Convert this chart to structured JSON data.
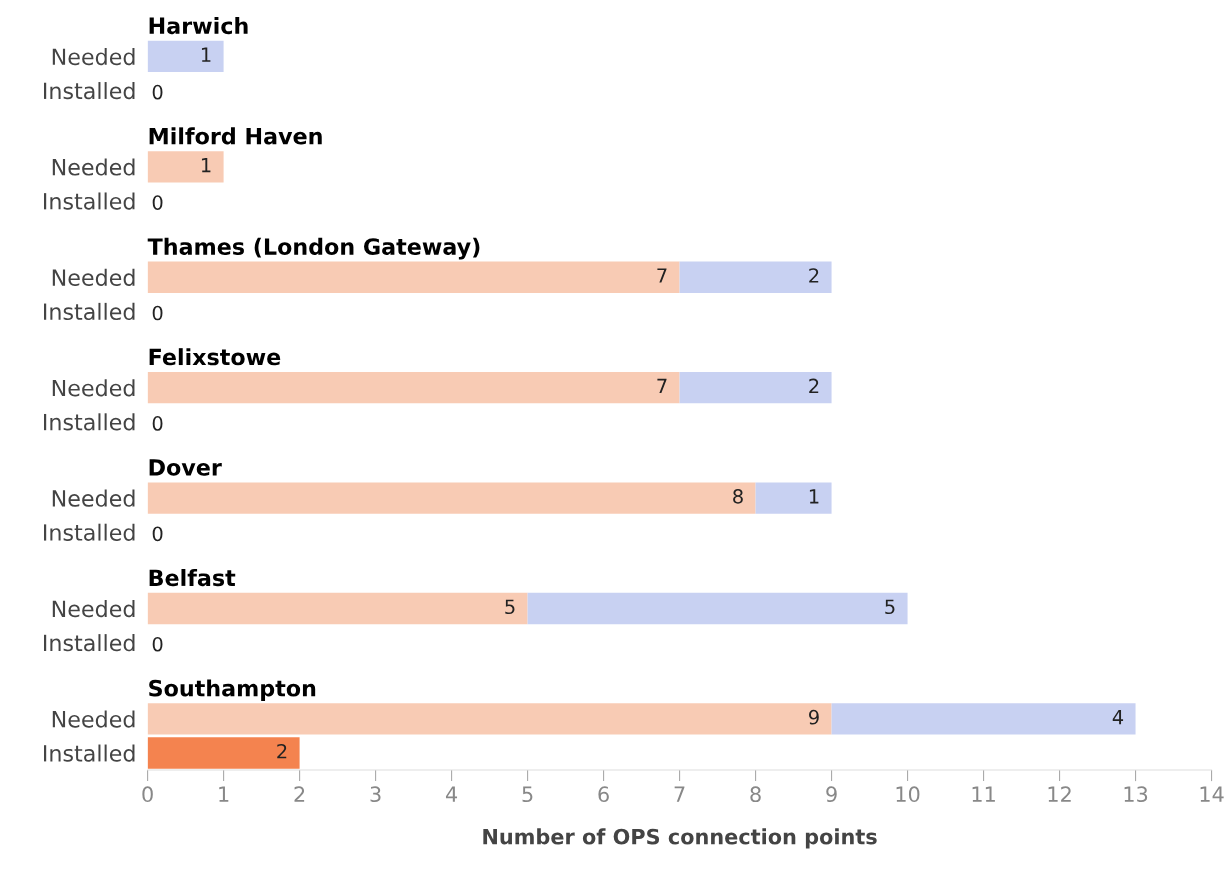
{
  "chart_data": [
    {
      "type": "bar",
      "orientation": "horizontal",
      "stacked": true,
      "title": "Harwich",
      "categories": [
        "Needed",
        "Installed"
      ],
      "xlim": [
        0,
        14
      ],
      "tick_labels": "y",
      "series": [
        {
          "color": "#f8cbb4",
          "values": [
            0,
            null
          ],
          "value_labels": [
            null,
            null
          ]
        },
        {
          "color": "#c8d1f2",
          "values": [
            1,
            null
          ],
          "value_labels": [
            "1",
            null
          ]
        },
        {
          "color": "#f4834f",
          "values": [
            null,
            0
          ],
          "value_labels": [
            null,
            "0"
          ]
        }
      ]
    },
    {
      "type": "bar",
      "orientation": "horizontal",
      "stacked": true,
      "title": "Milford Haven",
      "categories": [
        "Needed",
        "Installed"
      ],
      "xlim": [
        0,
        14
      ],
      "tick_labels": "y",
      "series": [
        {
          "color": "#f8cbb4",
          "values": [
            1,
            null
          ],
          "value_labels": [
            "1",
            null
          ]
        },
        {
          "color": "#c8d1f2",
          "values": [
            0,
            null
          ],
          "value_labels": [
            null,
            null
          ]
        },
        {
          "color": "#f4834f",
          "values": [
            null,
            0
          ],
          "value_labels": [
            null,
            "0"
          ]
        }
      ]
    },
    {
      "type": "bar",
      "orientation": "horizontal",
      "stacked": true,
      "title": "Thames (London Gateway)",
      "categories": [
        "Needed",
        "Installed"
      ],
      "xlim": [
        0,
        14
      ],
      "tick_labels": "y",
      "series": [
        {
          "color": "#f8cbb4",
          "values": [
            7,
            null
          ],
          "value_labels": [
            "7",
            null
          ]
        },
        {
          "color": "#c8d1f2",
          "values": [
            2,
            null
          ],
          "value_labels": [
            "2",
            null
          ]
        },
        {
          "color": "#f4834f",
          "values": [
            null,
            0
          ],
          "value_labels": [
            null,
            "0"
          ]
        }
      ]
    },
    {
      "type": "bar",
      "orientation": "horizontal",
      "stacked": true,
      "title": "Felixstowe",
      "categories": [
        "Needed",
        "Installed"
      ],
      "xlim": [
        0,
        14
      ],
      "tick_labels": "y",
      "series": [
        {
          "color": "#f8cbb4",
          "values": [
            7,
            null
          ],
          "value_labels": [
            "7",
            null
          ]
        },
        {
          "color": "#c8d1f2",
          "values": [
            2,
            null
          ],
          "value_labels": [
            "2",
            null
          ]
        },
        {
          "color": "#f4834f",
          "values": [
            null,
            0
          ],
          "value_labels": [
            null,
            "0"
          ]
        }
      ]
    },
    {
      "type": "bar",
      "orientation": "horizontal",
      "stacked": true,
      "title": "Dover",
      "categories": [
        "Needed",
        "Installed"
      ],
      "xlim": [
        0,
        14
      ],
      "tick_labels": "y",
      "series": [
        {
          "color": "#f8cbb4",
          "values": [
            8,
            null
          ],
          "value_labels": [
            "8",
            null
          ]
        },
        {
          "color": "#c8d1f2",
          "values": [
            1,
            null
          ],
          "value_labels": [
            "1",
            null
          ]
        },
        {
          "color": "#f4834f",
          "values": [
            null,
            0
          ],
          "value_labels": [
            null,
            "0"
          ]
        }
      ]
    },
    {
      "type": "bar",
      "orientation": "horizontal",
      "stacked": true,
      "title": "Belfast",
      "categories": [
        "Needed",
        "Installed"
      ],
      "xlim": [
        0,
        14
      ],
      "tick_labels": "y",
      "series": [
        {
          "color": "#f8cbb4",
          "values": [
            5,
            null
          ],
          "value_labels": [
            "5",
            null
          ]
        },
        {
          "color": "#c8d1f2",
          "values": [
            5,
            null
          ],
          "value_labels": [
            "5",
            null
          ]
        },
        {
          "color": "#f4834f",
          "values": [
            null,
            0
          ],
          "value_labels": [
            null,
            "0"
          ]
        }
      ]
    },
    {
      "type": "bar",
      "orientation": "horizontal",
      "stacked": true,
      "title": "Southampton",
      "categories": [
        "Needed",
        "Installed"
      ],
      "xlim": [
        0,
        14
      ],
      "xticks": [
        0,
        1,
        2,
        3,
        4,
        5,
        6,
        7,
        8,
        9,
        10,
        11,
        12,
        13,
        14
      ],
      "xlabel": "Number of OPS connection points",
      "series": [
        {
          "color": "#f8cbb4",
          "values": [
            9,
            null
          ],
          "value_labels": [
            "9",
            null
          ]
        },
        {
          "color": "#c8d1f2",
          "values": [
            4,
            null
          ],
          "value_labels": [
            "4",
            null
          ]
        },
        {
          "color": "#f4834f",
          "values": [
            null,
            2
          ],
          "value_labels": [
            null,
            "2"
          ]
        }
      ]
    }
  ]
}
